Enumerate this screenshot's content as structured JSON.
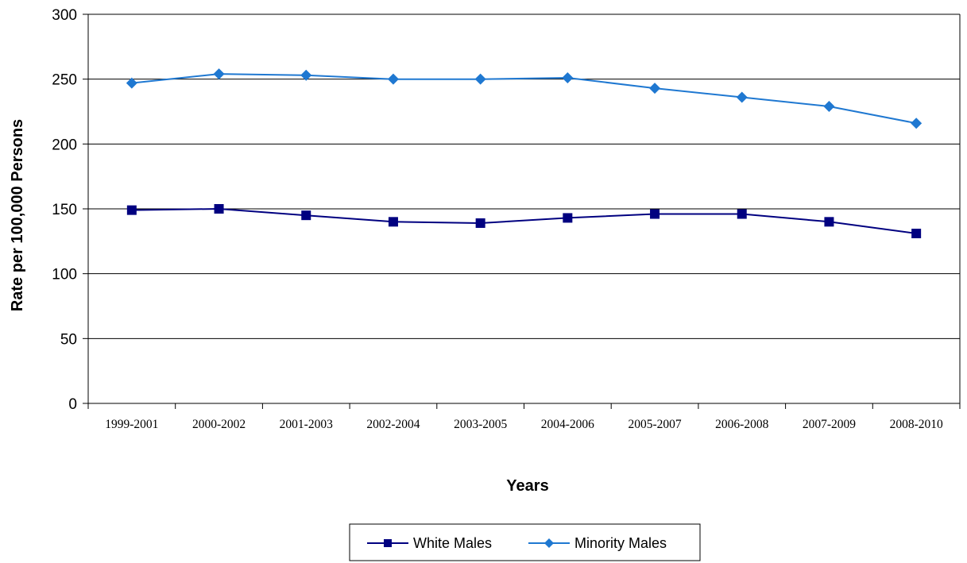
{
  "chart_data": {
    "type": "line",
    "title": "",
    "xlabel": "Years",
    "ylabel": "Rate per 100,000 Persons",
    "categories": [
      "1999-2001",
      "2000-2002",
      "2001-2003",
      "2002-2004",
      "2003-2005",
      "2004-2006",
      "2005-2007",
      "2006-2008",
      "2007-2009",
      "2008-2010"
    ],
    "ylim": [
      0,
      300
    ],
    "yticks": [
      0,
      50,
      100,
      150,
      200,
      250,
      300
    ],
    "grid": true,
    "legend_position": "bottom",
    "series": [
      {
        "name": "White Males",
        "marker": "square",
        "color": "#000080",
        "values": [
          149,
          150,
          145,
          140,
          139,
          143,
          146,
          146,
          140,
          131
        ]
      },
      {
        "name": "Minority Males",
        "marker": "diamond",
        "color": "#1f78d1",
        "values": [
          247,
          254,
          253,
          250,
          250,
          251,
          243,
          236,
          229,
          216
        ]
      }
    ]
  }
}
